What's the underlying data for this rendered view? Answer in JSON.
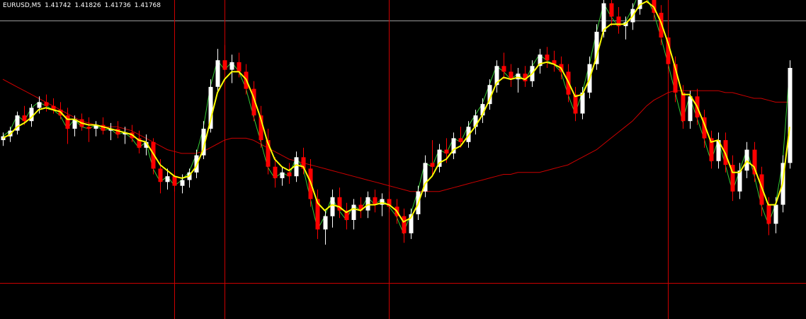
{
  "header": {
    "symbol_timeframe": "EURUSD,M5",
    "open": "1.41742",
    "high": "1.41826",
    "low": "1.41736",
    "close": "1.41768"
  },
  "colors": {
    "background": "#000000",
    "bull_candle": "#ffffff",
    "bear_candle": "#ff0000",
    "fast_ma": "#ffff00",
    "slow_ma": "#cc0000",
    "close_line": "#33cc33",
    "vertical_lines": "#cc0000",
    "horizontal_line_red": "#cc0000",
    "horizontal_line_grey": "#999999"
  },
  "chart_data": {
    "type": "candlestick",
    "symbol": "EURUSD",
    "timeframe": "M5",
    "y_range": [
      1.41,
      1.426
    ],
    "candles": [
      [
        1.419,
        1.4194,
        1.4187,
        1.4192
      ],
      [
        1.4192,
        1.4197,
        1.4189,
        1.4195
      ],
      [
        1.4195,
        1.4205,
        1.4193,
        1.4203
      ],
      [
        1.4203,
        1.4208,
        1.4198,
        1.42
      ],
      [
        1.42,
        1.4209,
        1.4197,
        1.4207
      ],
      [
        1.4207,
        1.4213,
        1.4204,
        1.421
      ],
      [
        1.421,
        1.4214,
        1.4205,
        1.4208
      ],
      [
        1.4208,
        1.4212,
        1.4204,
        1.4206
      ],
      [
        1.4206,
        1.421,
        1.4201,
        1.4203
      ],
      [
        1.4203,
        1.4207,
        1.4188,
        1.4196
      ],
      [
        1.4196,
        1.4203,
        1.4192,
        1.4201
      ],
      [
        1.4201,
        1.4204,
        1.4195,
        1.4197
      ],
      [
        1.4197,
        1.4202,
        1.4189,
        1.4196
      ],
      [
        1.4196,
        1.42,
        1.4192,
        1.4198
      ],
      [
        1.4198,
        1.4202,
        1.4193,
        1.4195
      ],
      [
        1.4195,
        1.4199,
        1.419,
        1.4196
      ],
      [
        1.4196,
        1.42,
        1.4191,
        1.4193
      ],
      [
        1.4193,
        1.4197,
        1.4188,
        1.4194
      ],
      [
        1.4194,
        1.4198,
        1.4189,
        1.4191
      ],
      [
        1.4191,
        1.4195,
        1.4183,
        1.4186
      ],
      [
        1.4186,
        1.4193,
        1.4182,
        1.4189
      ],
      [
        1.4189,
        1.4191,
        1.4172,
        1.4175
      ],
      [
        1.4175,
        1.418,
        1.4162,
        1.4168
      ],
      [
        1.4168,
        1.4175,
        1.4164,
        1.4171
      ],
      [
        1.4171,
        1.4174,
        1.4163,
        1.4166
      ],
      [
        1.4166,
        1.4172,
        1.4162,
        1.4169
      ],
      [
        1.4169,
        1.4175,
        1.4165,
        1.4173
      ],
      [
        1.4173,
        1.4185,
        1.417,
        1.4182
      ],
      [
        1.4182,
        1.42,
        1.418,
        1.4196
      ],
      [
        1.4196,
        1.4222,
        1.4194,
        1.4218
      ],
      [
        1.4218,
        1.4238,
        1.4215,
        1.4232
      ],
      [
        1.4232,
        1.424,
        1.4222,
        1.4227
      ],
      [
        1.4227,
        1.4235,
        1.422,
        1.4231
      ],
      [
        1.4231,
        1.4236,
        1.4223,
        1.4226
      ],
      [
        1.4226,
        1.423,
        1.4214,
        1.4217
      ],
      [
        1.4217,
        1.4221,
        1.42,
        1.4203
      ],
      [
        1.4203,
        1.4208,
        1.4186,
        1.419
      ],
      [
        1.419,
        1.4196,
        1.4172,
        1.4176
      ],
      [
        1.4176,
        1.4181,
        1.4165,
        1.417
      ],
      [
        1.417,
        1.4176,
        1.4166,
        1.4173
      ],
      [
        1.4173,
        1.4178,
        1.4167,
        1.4171
      ],
      [
        1.4171,
        1.4184,
        1.4168,
        1.4181
      ],
      [
        1.4181,
        1.4186,
        1.4172,
        1.4175
      ],
      [
        1.4175,
        1.418,
        1.4155,
        1.4159
      ],
      [
        1.4159,
        1.4164,
        1.4138,
        1.4143
      ],
      [
        1.4143,
        1.4153,
        1.4135,
        1.415
      ],
      [
        1.415,
        1.4164,
        1.4144,
        1.416
      ],
      [
        1.416,
        1.4165,
        1.4149,
        1.4153
      ],
      [
        1.4153,
        1.4157,
        1.4143,
        1.4148
      ],
      [
        1.4148,
        1.4159,
        1.4143,
        1.4156
      ],
      [
        1.4156,
        1.416,
        1.4149,
        1.4153
      ],
      [
        1.4153,
        1.4163,
        1.4149,
        1.416
      ],
      [
        1.416,
        1.4164,
        1.4152,
        1.4156
      ],
      [
        1.4156,
        1.4162,
        1.415,
        1.4159
      ],
      [
        1.4159,
        1.4163,
        1.4152,
        1.4155
      ],
      [
        1.4155,
        1.4159,
        1.4146,
        1.415
      ],
      [
        1.415,
        1.4154,
        1.4136,
        1.4141
      ],
      [
        1.4141,
        1.4154,
        1.4138,
        1.4151
      ],
      [
        1.4151,
        1.4166,
        1.4148,
        1.4163
      ],
      [
        1.4163,
        1.4182,
        1.416,
        1.4178
      ],
      [
        1.4178,
        1.419,
        1.4171,
        1.4176
      ],
      [
        1.4176,
        1.4188,
        1.4173,
        1.4185
      ],
      [
        1.4185,
        1.4191,
        1.4178,
        1.4183
      ],
      [
        1.4183,
        1.4194,
        1.418,
        1.4191
      ],
      [
        1.4191,
        1.4197,
        1.4186,
        1.4189
      ],
      [
        1.4189,
        1.42,
        1.4186,
        1.4197
      ],
      [
        1.4197,
        1.4206,
        1.4193,
        1.4203
      ],
      [
        1.4203,
        1.4212,
        1.4199,
        1.4209
      ],
      [
        1.4209,
        1.4222,
        1.4206,
        1.4219
      ],
      [
        1.4219,
        1.4232,
        1.4215,
        1.4229
      ],
      [
        1.4229,
        1.4236,
        1.4222,
        1.4226
      ],
      [
        1.4226,
        1.423,
        1.4218,
        1.4222
      ],
      [
        1.4222,
        1.4228,
        1.4215,
        1.4225
      ],
      [
        1.4225,
        1.4229,
        1.4218,
        1.4221
      ],
      [
        1.4221,
        1.4232,
        1.4218,
        1.4229
      ],
      [
        1.4229,
        1.4238,
        1.4225,
        1.4235
      ],
      [
        1.4235,
        1.4239,
        1.4228,
        1.4232
      ],
      [
        1.4232,
        1.4237,
        1.4226,
        1.423
      ],
      [
        1.423,
        1.4234,
        1.4222,
        1.4226
      ],
      [
        1.4226,
        1.423,
        1.421,
        1.4214
      ],
      [
        1.4214,
        1.4218,
        1.42,
        1.4204
      ],
      [
        1.4204,
        1.4218,
        1.4201,
        1.4215
      ],
      [
        1.4215,
        1.4234,
        1.4212,
        1.423
      ],
      [
        1.423,
        1.4251,
        1.4227,
        1.4247
      ],
      [
        1.4247,
        1.4266,
        1.4244,
        1.4262
      ],
      [
        1.4262,
        1.4268,
        1.425,
        1.4255
      ],
      [
        1.4255,
        1.426,
        1.4246,
        1.425
      ],
      [
        1.425,
        1.4255,
        1.4243,
        1.4252
      ],
      [
        1.4252,
        1.4262,
        1.4248,
        1.4259
      ],
      [
        1.4259,
        1.4272,
        1.4256,
        1.4268
      ],
      [
        1.4268,
        1.4276,
        1.4262,
        1.4265
      ],
      [
        1.4265,
        1.427,
        1.4253,
        1.4257
      ],
      [
        1.4257,
        1.4261,
        1.424,
        1.4244
      ],
      [
        1.4244,
        1.4248,
        1.4225,
        1.423
      ],
      [
        1.423,
        1.4234,
        1.421,
        1.4215
      ],
      [
        1.4215,
        1.4219,
        1.4196,
        1.42
      ],
      [
        1.42,
        1.4216,
        1.4196,
        1.4213
      ],
      [
        1.4213,
        1.4217,
        1.4198,
        1.4202
      ],
      [
        1.4202,
        1.4206,
        1.4186,
        1.4191
      ],
      [
        1.4191,
        1.4195,
        1.4175,
        1.4179
      ],
      [
        1.4179,
        1.4194,
        1.4175,
        1.419
      ],
      [
        1.419,
        1.4194,
        1.4173,
        1.4177
      ],
      [
        1.4177,
        1.4182,
        1.4158,
        1.4163
      ],
      [
        1.4163,
        1.4178,
        1.4159,
        1.4174
      ],
      [
        1.4174,
        1.4189,
        1.417,
        1.4185
      ],
      [
        1.4185,
        1.4189,
        1.4168,
        1.4172
      ],
      [
        1.4172,
        1.4176,
        1.415,
        1.4156
      ],
      [
        1.4156,
        1.416,
        1.414,
        1.4146
      ],
      [
        1.4146,
        1.416,
        1.4141,
        1.4156
      ],
      [
        1.4156,
        1.4182,
        1.4152,
        1.4178
      ],
      [
        1.4178,
        1.4232,
        1.4175,
        1.4228
      ]
    ],
    "fast_ma": [
      1.4191,
      1.4193,
      1.4197,
      1.4199,
      1.4202,
      1.4206,
      1.4207,
      1.4206,
      1.4205,
      1.4201,
      1.4201,
      1.4199,
      1.4198,
      1.4198,
      1.4197,
      1.4196,
      1.4195,
      1.4194,
      1.4193,
      1.419,
      1.4189,
      1.4183,
      1.4177,
      1.4174,
      1.4171,
      1.417,
      1.4171,
      1.4176,
      1.4185,
      1.42,
      1.4215,
      1.4222,
      1.4226,
      1.4226,
      1.4222,
      1.4213,
      1.4202,
      1.4189,
      1.418,
      1.4176,
      1.4174,
      1.4177,
      1.4176,
      1.4168,
      1.4157,
      1.4153,
      1.4156,
      1.4155,
      1.4152,
      1.4154,
      1.4153,
      1.4156,
      1.4156,
      1.4157,
      1.4156,
      1.4153,
      1.4147,
      1.4149,
      1.4156,
      1.4167,
      1.4171,
      1.4178,
      1.418,
      1.4185,
      1.4187,
      1.4192,
      1.4197,
      1.4203,
      1.4211,
      1.422,
      1.4223,
      1.4222,
      1.4223,
      1.4222,
      1.4225,
      1.423,
      1.4231,
      1.423,
      1.4228,
      1.4221,
      1.4213,
      1.4214,
      1.4222,
      1.4234,
      1.4248,
      1.4251,
      1.4251,
      1.4251,
      1.4255,
      1.4261,
      1.4263,
      1.426,
      1.4252,
      1.4241,
      1.4228,
      1.4214,
      1.4214,
      1.4208,
      1.4199,
      1.4189,
      1.419,
      1.4183,
      1.4173,
      1.4173,
      1.4179,
      1.4176,
      1.4166,
      1.4156,
      1.4156,
      1.4167,
      1.4197
    ],
    "slow_ma": [
      1.4222,
      1.422,
      1.4218,
      1.4216,
      1.4214,
      1.4212,
      1.421,
      1.4208,
      1.4206,
      1.4204,
      1.4202,
      1.42,
      1.4199,
      1.4198,
      1.4197,
      1.4197,
      1.4197,
      1.4196,
      1.4195,
      1.4193,
      1.4191,
      1.4189,
      1.4187,
      1.4185,
      1.4184,
      1.4183,
      1.4183,
      1.4183,
      1.4184,
      1.4186,
      1.4188,
      1.419,
      1.4191,
      1.4191,
      1.4191,
      1.419,
      1.4188,
      1.4186,
      1.4184,
      1.4182,
      1.418,
      1.4179,
      1.4178,
      1.4177,
      1.4176,
      1.4175,
      1.4174,
      1.4173,
      1.4172,
      1.4171,
      1.417,
      1.4169,
      1.4168,
      1.4167,
      1.4166,
      1.4165,
      1.4164,
      1.4163,
      1.4163,
      1.4163,
      1.4163,
      1.4163,
      1.4164,
      1.4165,
      1.4166,
      1.4167,
      1.4168,
      1.4169,
      1.417,
      1.4171,
      1.4172,
      1.4172,
      1.4173,
      1.4173,
      1.4173,
      1.4173,
      1.4174,
      1.4175,
      1.4176,
      1.4177,
      1.4179,
      1.4181,
      1.4183,
      1.4185,
      1.4188,
      1.4191,
      1.4194,
      1.4197,
      1.42,
      1.4204,
      1.4208,
      1.4211,
      1.4213,
      1.4215,
      1.4216,
      1.4216,
      1.4216,
      1.4216,
      1.4216,
      1.4216,
      1.4216,
      1.4215,
      1.4215,
      1.4214,
      1.4213,
      1.4212,
      1.4212,
      1.4211,
      1.421,
      1.421,
      1.421
    ],
    "vertical_line_bars": [
      24,
      31,
      54,
      93
    ],
    "horizontal_lines": [
      {
        "price": 1.4253,
        "color": "#999999"
      },
      {
        "price": 1.4115,
        "color": "#cc0000"
      }
    ]
  }
}
